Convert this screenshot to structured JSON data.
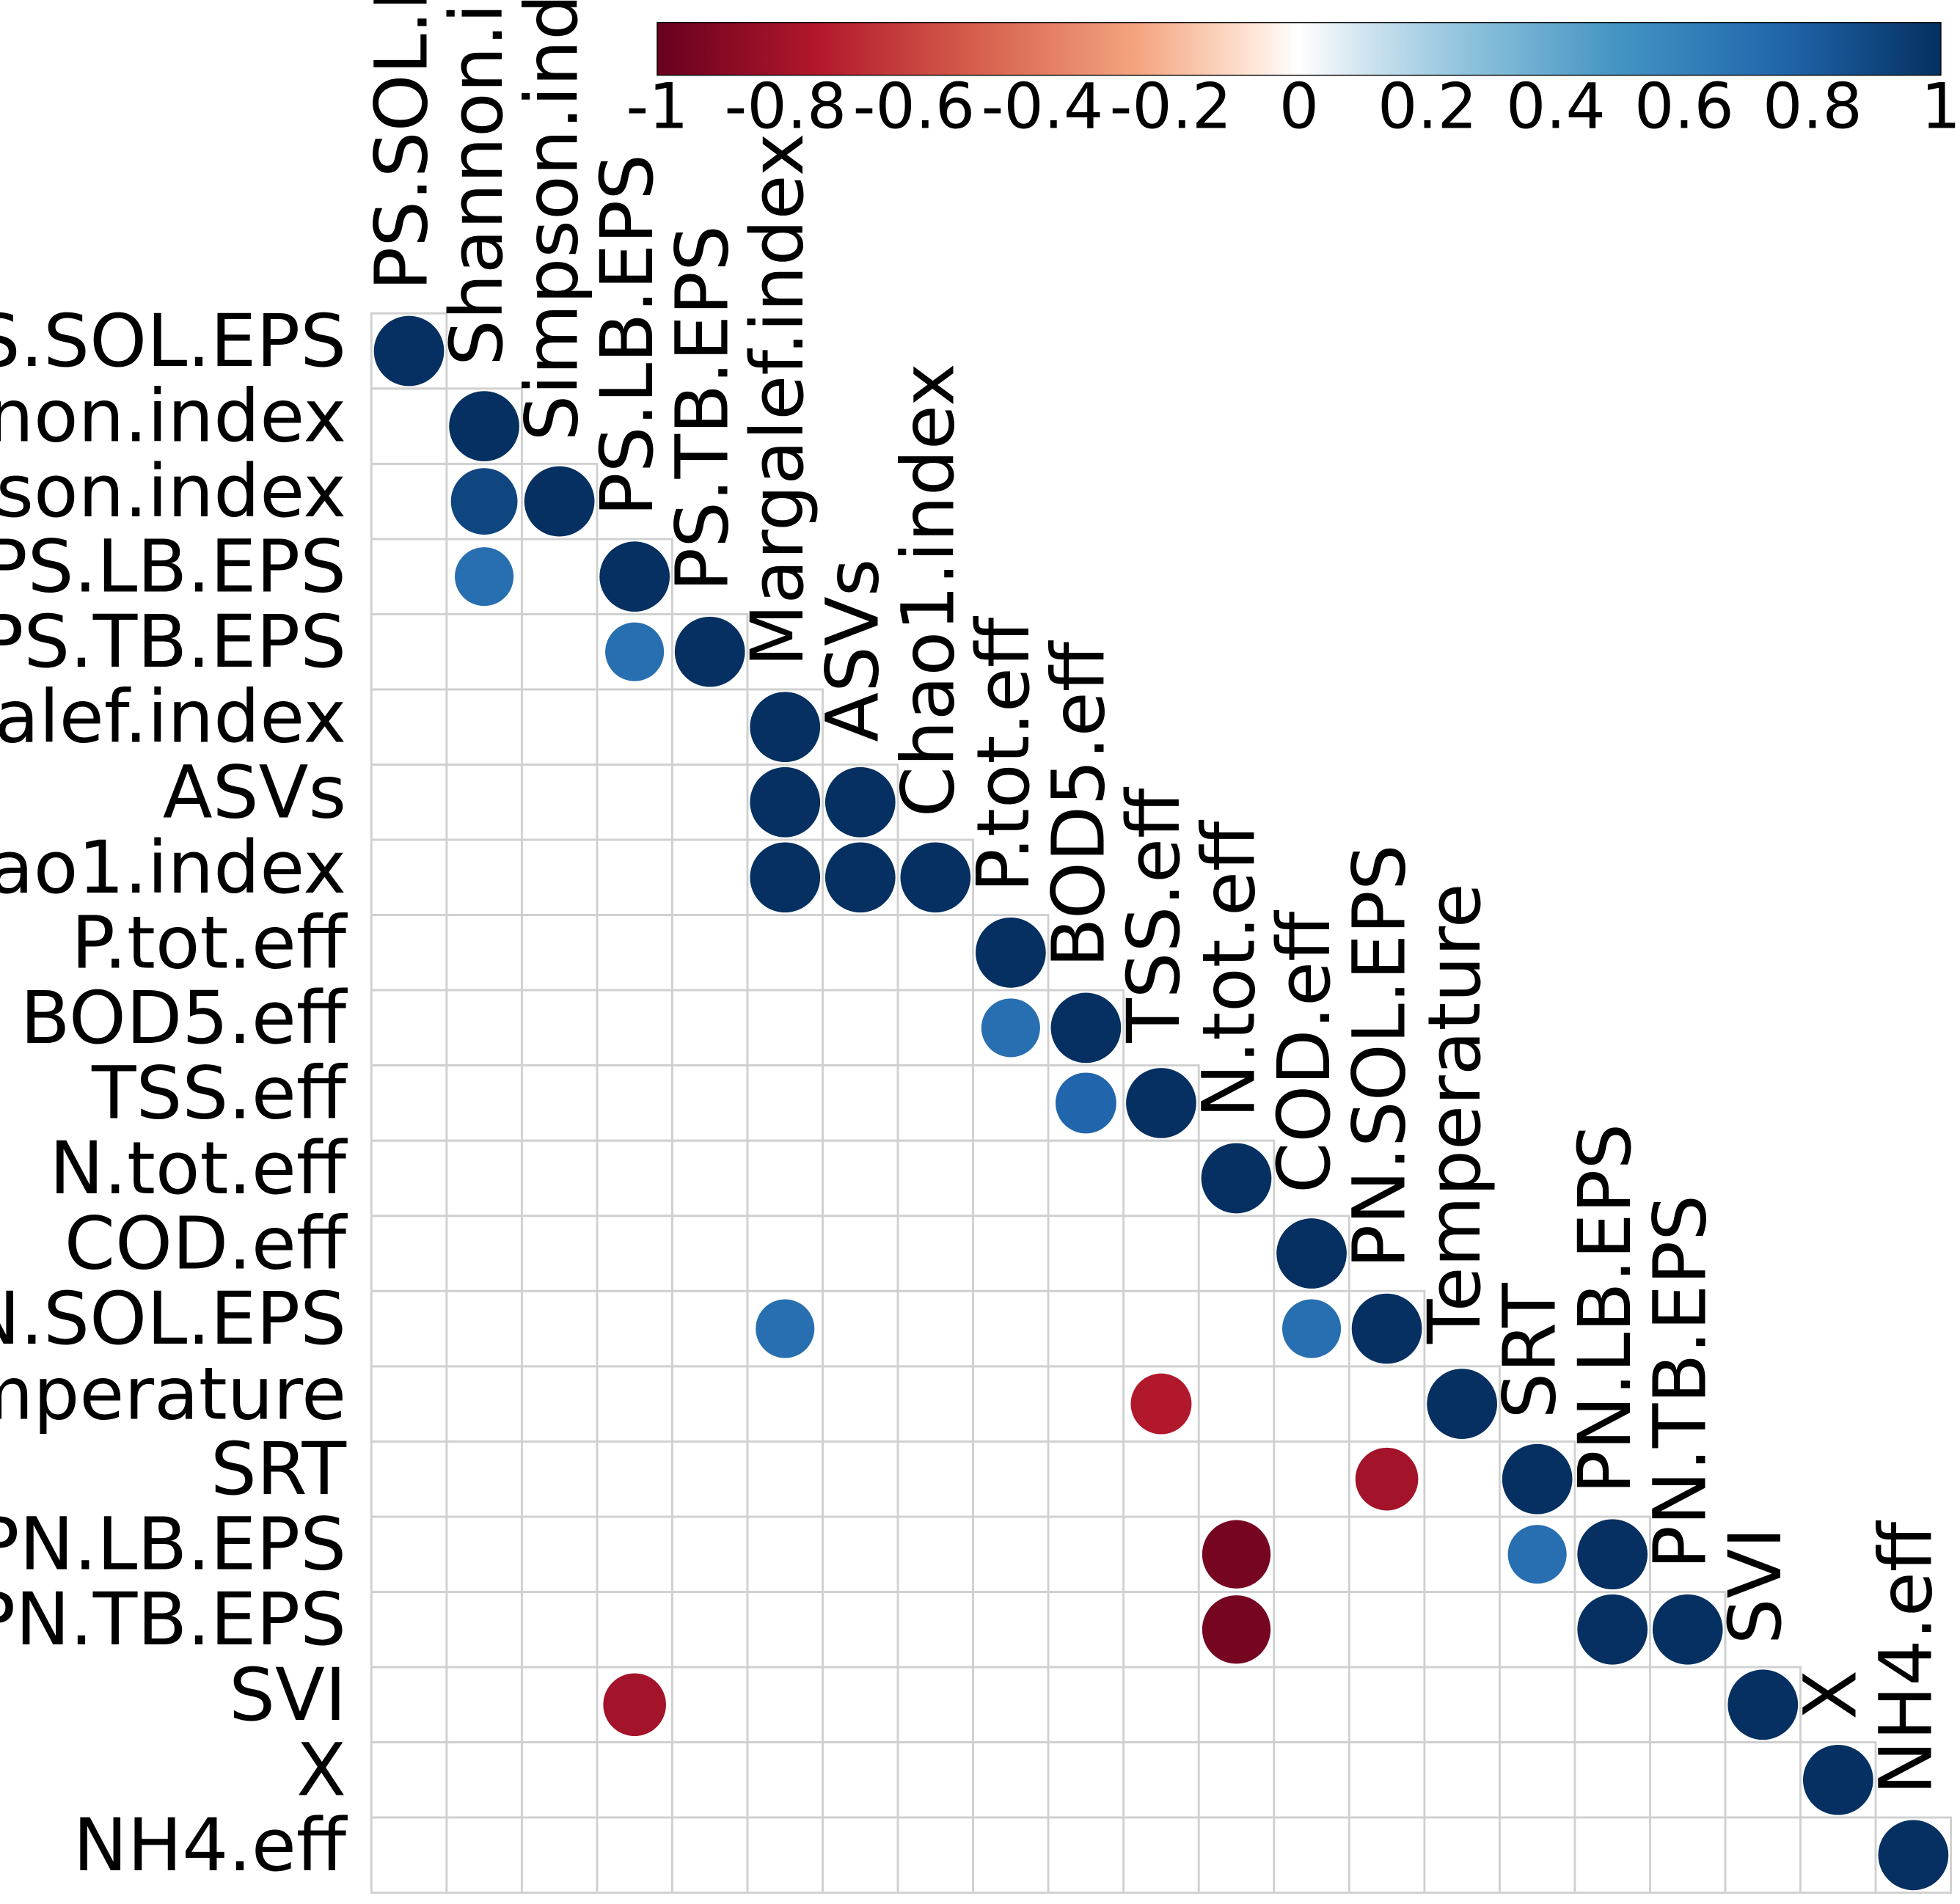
{
  "chart_data": {
    "type": "heatmap",
    "style": "lower-triangle correlation circles",
    "variables": [
      "PS.SOL.EPS",
      "Shannon.index",
      "Simpson.index",
      "PS.LB.EPS",
      "PS.TB.EPS",
      "Margalef.index",
      "ASVs",
      "Chao1.index",
      "P.tot.eff",
      "BOD5.eff",
      "TSS.eff",
      "N.tot.eff",
      "COD.eff",
      "PN.SOL.EPS",
      "Temperature",
      "SRT",
      "PN.LB.EPS",
      "PN.TB.EPS",
      "SVI",
      "X",
      "NH4.eff"
    ],
    "correlations": [
      {
        "row": 0,
        "col": 0,
        "value": 1
      },
      {
        "row": 1,
        "col": 1,
        "value": 1
      },
      {
        "row": 2,
        "col": 1,
        "value": 0.9
      },
      {
        "row": 2,
        "col": 2,
        "value": 1
      },
      {
        "row": 3,
        "col": 1,
        "value": 0.7
      },
      {
        "row": 3,
        "col": 3,
        "value": 1
      },
      {
        "row": 4,
        "col": 3,
        "value": 0.7
      },
      {
        "row": 4,
        "col": 4,
        "value": 1
      },
      {
        "row": 5,
        "col": 5,
        "value": 1
      },
      {
        "row": 6,
        "col": 5,
        "value": 1
      },
      {
        "row": 6,
        "col": 6,
        "value": 1
      },
      {
        "row": 7,
        "col": 5,
        "value": 1
      },
      {
        "row": 7,
        "col": 6,
        "value": 1
      },
      {
        "row": 7,
        "col": 7,
        "value": 1
      },
      {
        "row": 8,
        "col": 8,
        "value": 1
      },
      {
        "row": 9,
        "col": 8,
        "value": 0.7
      },
      {
        "row": 9,
        "col": 9,
        "value": 1
      },
      {
        "row": 10,
        "col": 9,
        "value": 0.75
      },
      {
        "row": 10,
        "col": 10,
        "value": 1
      },
      {
        "row": 11,
        "col": 11,
        "value": 1
      },
      {
        "row": 12,
        "col": 12,
        "value": 1
      },
      {
        "row": 13,
        "col": 5,
        "value": 0.7
      },
      {
        "row": 13,
        "col": 12,
        "value": 0.7
      },
      {
        "row": 13,
        "col": 13,
        "value": 1
      },
      {
        "row": 14,
        "col": 10,
        "value": -0.75
      },
      {
        "row": 14,
        "col": 14,
        "value": 1
      },
      {
        "row": 15,
        "col": 13,
        "value": -0.8
      },
      {
        "row": 15,
        "col": 15,
        "value": 1
      },
      {
        "row": 16,
        "col": 11,
        "value": -0.95
      },
      {
        "row": 16,
        "col": 15,
        "value": 0.7
      },
      {
        "row": 16,
        "col": 16,
        "value": 1
      },
      {
        "row": 17,
        "col": 11,
        "value": -0.95
      },
      {
        "row": 17,
        "col": 16,
        "value": 1
      },
      {
        "row": 17,
        "col": 17,
        "value": 1
      },
      {
        "row": 18,
        "col": 3,
        "value": -0.8
      },
      {
        "row": 18,
        "col": 18,
        "value": 1
      },
      {
        "row": 19,
        "col": 19,
        "value": 1
      },
      {
        "row": 20,
        "col": 20,
        "value": 1
      }
    ],
    "colorbar": {
      "range": [
        -1,
        1
      ],
      "ticks": [
        "-1",
        "-0.8",
        "-0.6",
        "-0.4",
        "-0.2",
        "0",
        "0.2",
        "0.4",
        "0.6",
        "0.8",
        "1"
      ],
      "stops": [
        {
          "v": -1,
          "color": "#67001f"
        },
        {
          "v": -0.75,
          "color": "#b2182b"
        },
        {
          "v": -0.5,
          "color": "#d6604d"
        },
        {
          "v": -0.25,
          "color": "#f4a582"
        },
        {
          "v": -0.1,
          "color": "#fddbc7"
        },
        {
          "v": 0,
          "color": "#ffffff"
        },
        {
          "v": 0.1,
          "color": "#d1e5f0"
        },
        {
          "v": 0.25,
          "color": "#92c5de"
        },
        {
          "v": 0.5,
          "color": "#4393c3"
        },
        {
          "v": 0.75,
          "color": "#2166ac"
        },
        {
          "v": 1,
          "color": "#053061"
        }
      ]
    },
    "grid_color": "#d0d0d0"
  }
}
